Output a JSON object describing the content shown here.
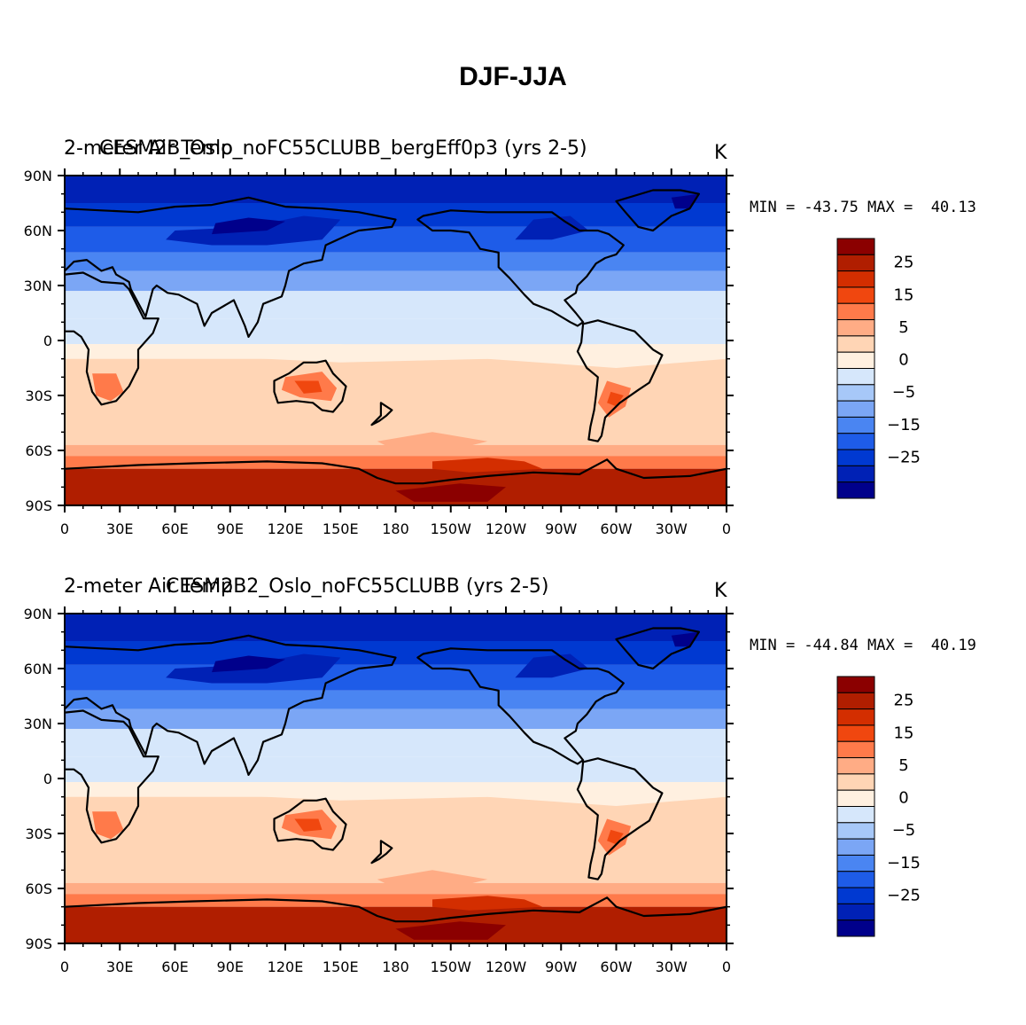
{
  "figure_title": "DJF-JJA",
  "colorbar_colors": [
    "#00008b",
    "#0021b5",
    "#0039d1",
    "#1e5ce8",
    "#4a85f2",
    "#7ba6f5",
    "#a7c8f8",
    "#d6e7fb",
    "#fff0e0",
    "#ffd5b5",
    "#ffac85",
    "#ff7a4a",
    "#f0470f",
    "#d32e00",
    "#b01e00",
    "#8b0000"
  ],
  "panels": [
    {
      "id": "top",
      "left_title": "2-meter Air Temp",
      "center_title": "CESM2B_Oslo_noFC55CLUBB_bergEff0p3 (yrs 2-5)",
      "units": "K",
      "minmax": "MIN = -43.75 MAX =  40.13"
    },
    {
      "id": "bottom",
      "left_title": "2-meter Air Temp",
      "center_title": "CESM2B2_Oslo_noFC55CLUBB (yrs 2-5)",
      "units": "K",
      "minmax": "MIN = -44.84 MAX =  40.19"
    }
  ],
  "chart_data": {
    "type": "heatmap",
    "title": "DJF-JJA",
    "variable": "2-meter Air Temp",
    "units": "K",
    "x_ticks": [
      "0",
      "30E",
      "60E",
      "90E",
      "120E",
      "150E",
      "180",
      "150W",
      "120W",
      "90W",
      "60W",
      "30W",
      "0"
    ],
    "y_ticks": [
      "90N",
      "60N",
      "30N",
      "0",
      "30S",
      "60S",
      "90S"
    ],
    "colorbar_labels": [
      "25",
      "15",
      "5",
      "0",
      "-5",
      "-15",
      "-25"
    ],
    "levels": [
      -35,
      -30,
      -25,
      -20,
      -15,
      -10,
      -5,
      0,
      5,
      10,
      15,
      20,
      25,
      30,
      35
    ],
    "maps": [
      {
        "case": "CESM2B_Oslo_noFC55CLUBB_bergEff0p3 (yrs 2-5)",
        "min": -43.75,
        "max": 40.13
      },
      {
        "case": "CESM2B2_Oslo_noFC55CLUBB (yrs 2-5)",
        "min": -44.84,
        "max": 40.19
      }
    ]
  }
}
